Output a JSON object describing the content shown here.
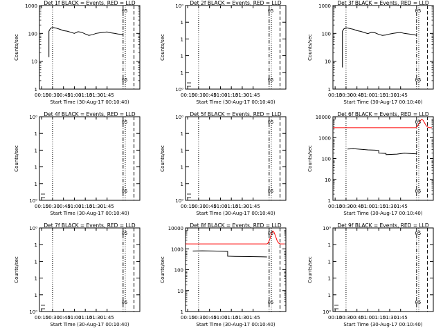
{
  "figure": {
    "xlabel": "Start Time (30-Aug-17 00:10:40)",
    "ylabel": "Counts/sec",
    "xticks": [
      "00:15",
      "00:30",
      "00:45",
      "01:00",
      "01:15",
      "01:30",
      "01:45"
    ]
  },
  "chart_data": [
    {
      "type": "line",
      "title": "Det 1f BLACK = Events, RED = LLD",
      "xlabel": "Start Time (30-Aug-17 00:10:40)",
      "ylabel": "Counts/sec",
      "yscale": "log",
      "ylim": [
        1,
        1000
      ],
      "yticks": [
        "1",
        "10",
        "100",
        "1000"
      ],
      "xlim_minutes": [
        12,
        150
      ],
      "xticks": [
        "00:15",
        "00:30",
        "00:45",
        "01:00",
        "01:15",
        "01:30",
        "01:45"
      ],
      "vlines_minutes": {
        "dotted": [
          30,
          130
        ],
        "dashdot": [
          127
        ],
        "dashed": [
          142
        ]
      },
      "marker_minute": 129,
      "marker_label": "05",
      "series": [
        {
          "color": "#000000",
          "x": [
            25,
            25,
            27,
            30,
            35,
            40,
            45,
            50,
            55,
            60,
            65,
            70,
            75,
            80,
            85,
            90,
            95,
            100,
            105,
            110,
            115,
            120,
            125,
            127
          ],
          "y": [
            14,
            120,
            150,
            165,
            155,
            140,
            125,
            120,
            110,
            100,
            115,
            110,
            95,
            85,
            90,
            100,
            105,
            110,
            112,
            105,
            100,
            95,
            92,
            88
          ]
        }
      ]
    },
    {
      "type": "line",
      "title": "Det 2f BLACK = Events, RED = LLD",
      "xlabel": "Start Time (30-Aug-17 00:10:40)",
      "ylabel": "Counts/sec",
      "yscale": "log",
      "ylim": [
        0.9,
        1.1
      ],
      "yticks": [
        "10⁰",
        "1",
        "1",
        "1",
        "1",
        "10⁰"
      ],
      "xlim_minutes": [
        12,
        150
      ],
      "xticks": [
        "00:15",
        "00:30",
        "00:45",
        "01:00",
        "01:15",
        "01:30",
        "01:45"
      ],
      "vlines_minutes": {
        "dotted": [
          30,
          130
        ],
        "dashdot": [
          127
        ],
        "dashed": [
          142
        ]
      },
      "marker_minute": 129,
      "marker_label": "05",
      "series": []
    },
    {
      "type": "line",
      "title": "Det 3f BLACK = Events, RED = LLD",
      "xlabel": "Start Time (30-Aug-17 00:10:40)",
      "ylabel": "Counts/sec",
      "yscale": "log",
      "ylim": [
        1,
        1000
      ],
      "yticks": [
        "1",
        "10",
        "100",
        "1000"
      ],
      "xlim_minutes": [
        12,
        150
      ],
      "xticks": [
        "00:15",
        "00:30",
        "00:45",
        "01:00",
        "01:15",
        "01:30",
        "01:45"
      ],
      "vlines_minutes": {
        "dotted": [
          30,
          130
        ],
        "dashdot": [
          127
        ],
        "dashed": [
          142
        ]
      },
      "marker_minute": 129,
      "marker_label": "05",
      "series": [
        {
          "color": "#000000",
          "x": [
            25,
            25,
            27,
            30,
            35,
            40,
            45,
            50,
            55,
            60,
            65,
            70,
            75,
            80,
            85,
            90,
            95,
            100,
            105,
            110,
            115,
            120,
            125,
            127
          ],
          "y": [
            6,
            120,
            145,
            160,
            150,
            140,
            125,
            118,
            108,
            98,
            110,
            105,
            92,
            85,
            88,
            95,
            100,
            105,
            108,
            100,
            96,
            92,
            88,
            85
          ]
        }
      ]
    },
    {
      "type": "line",
      "title": "Det 4f BLACK = Events, RED = LLD",
      "xlabel": "Start Time (30-Aug-17 00:10:40)",
      "ylabel": "Counts/sec",
      "yscale": "log",
      "ylim": [
        0.9,
        1.1
      ],
      "yticks": [
        "10⁰",
        "1",
        "1",
        "1",
        "1",
        "10⁰"
      ],
      "xlim_minutes": [
        12,
        150
      ],
      "xticks": [
        "00:15",
        "00:30",
        "00:45",
        "01:00",
        "01:15",
        "01:30",
        "01:45"
      ],
      "vlines_minutes": {
        "dotted": [
          30,
          130
        ],
        "dashdot": [
          127
        ],
        "dashed": [
          142
        ]
      },
      "marker_minute": 129,
      "marker_label": "05",
      "series": []
    },
    {
      "type": "line",
      "title": "Det 5f BLACK = Events, RED = LLD",
      "xlabel": "Start Time (30-Aug-17 00:10:40)",
      "ylabel": "Counts/sec",
      "yscale": "log",
      "ylim": [
        0.9,
        1.1
      ],
      "yticks": [
        "10⁰",
        "1",
        "1",
        "1",
        "1",
        "10⁰"
      ],
      "xlim_minutes": [
        12,
        150
      ],
      "xticks": [
        "00:15",
        "00:30",
        "00:45",
        "01:00",
        "01:15",
        "01:30",
        "01:45"
      ],
      "vlines_minutes": {
        "dotted": [
          30,
          130
        ],
        "dashdot": [
          127
        ],
        "dashed": [
          142
        ]
      },
      "marker_minute": 129,
      "marker_label": "05",
      "series": []
    },
    {
      "type": "line",
      "title": "Det 6f BLACK = Events, RED = LLD",
      "xlabel": "Start Time (30-Aug-17 00:10:40)",
      "ylabel": "Counts/sec",
      "yscale": "log",
      "ylim": [
        1,
        12000
      ],
      "yticks": [
        "1",
        "10",
        "100",
        "1000",
        "10000"
      ],
      "xlim_minutes": [
        12,
        150
      ],
      "xticks": [
        "00:15",
        "00:30",
        "00:45",
        "01:00",
        "01:15",
        "01:30",
        "01:45"
      ],
      "vlines_minutes": {
        "dotted": [
          30,
          130
        ],
        "dashdot": [
          127
        ],
        "dashed": [
          142
        ]
      },
      "marker_minute": 129,
      "marker_label": "05",
      "series": [
        {
          "color": "#000000",
          "x": [
            32,
            40,
            50,
            60,
            70,
            75,
            75,
            85,
            85,
            100,
            110,
            120,
            127
          ],
          "y": [
            320,
            330,
            310,
            290,
            280,
            270,
            200,
            195,
            170,
            180,
            200,
            190,
            185
          ]
        },
        {
          "color": "#ff0000",
          "x": [
            12,
            126,
            128,
            130,
            132,
            134,
            136,
            138,
            140,
            142,
            145,
            148
          ],
          "y": [
            3500,
            3500,
            4000,
            5500,
            7500,
            9000,
            8000,
            6000,
            4500,
            3800,
            3500,
            3500
          ]
        }
      ]
    },
    {
      "type": "line",
      "title": "Det 7f BLACK = Events, RED = LLD",
      "xlabel": "Start Time (30-Aug-17 00:10:40)",
      "ylabel": "Counts/sec",
      "yscale": "log",
      "ylim": [
        0.9,
        1.1
      ],
      "yticks": [
        "10⁰",
        "1",
        "1",
        "1",
        "1",
        "10⁰"
      ],
      "xlim_minutes": [
        12,
        150
      ],
      "xticks": [
        "00:15",
        "00:30",
        "00:45",
        "01:00",
        "01:15",
        "01:30",
        "01:45"
      ],
      "vlines_minutes": {
        "dotted": [
          30,
          130
        ],
        "dashdot": [
          127
        ],
        "dashed": [
          142
        ]
      },
      "marker_minute": 129,
      "marker_label": "05",
      "series": []
    },
    {
      "type": "line",
      "title": "Det 8f BLACK = Events, RED = LLD",
      "xlabel": "Start Time (30-Aug-17 00:10:40)",
      "ylabel": "Counts/sec",
      "yscale": "log",
      "ylim": [
        1,
        12000
      ],
      "yticks": [
        "1",
        "10",
        "100",
        "1000",
        "10000"
      ],
      "xlim_minutes": [
        12,
        150
      ],
      "xticks": [
        "00:15",
        "00:30",
        "00:45",
        "01:00",
        "01:15",
        "01:30",
        "01:45"
      ],
      "vlines_minutes": {
        "dotted": [
          30,
          130
        ],
        "dashdot": [
          127
        ],
        "dashed": [
          142
        ]
      },
      "marker_minute": 129,
      "marker_label": "05",
      "series": [
        {
          "color": "#000000",
          "x": [
            22,
            35,
            50,
            65,
            70,
            70,
            80,
            100,
            115,
            124
          ],
          "y": [
            900,
            920,
            900,
            880,
            860,
            500,
            490,
            480,
            470,
            460
          ]
        },
        {
          "color": "#ff0000",
          "x": [
            12,
            124,
            126,
            128,
            130,
            132,
            134,
            136,
            138,
            140,
            142,
            145,
            148
          ],
          "y": [
            2000,
            2000,
            2300,
            3500,
            6000,
            8500,
            7000,
            4500,
            2800,
            2200,
            2000,
            2000,
            2000
          ]
        }
      ]
    },
    {
      "type": "line",
      "title": "Det 9f BLACK = Events, RED = LLD",
      "xlabel": "Start Time (30-Aug-17 00:10:40)",
      "ylabel": "Counts/sec",
      "yscale": "log",
      "ylim": [
        0.9,
        1.1
      ],
      "yticks": [
        "10⁰",
        "1",
        "1",
        "1",
        "1",
        "10⁰"
      ],
      "xlim_minutes": [
        12,
        150
      ],
      "xticks": [
        "00:15",
        "00:30",
        "00:45",
        "01:00",
        "01:15",
        "01:30",
        "01:45"
      ],
      "vlines_minutes": {
        "dotted": [
          30,
          130
        ],
        "dashdot": [
          127
        ],
        "dashed": [
          142
        ]
      },
      "marker_minute": 129,
      "marker_label": "05",
      "series": []
    }
  ]
}
